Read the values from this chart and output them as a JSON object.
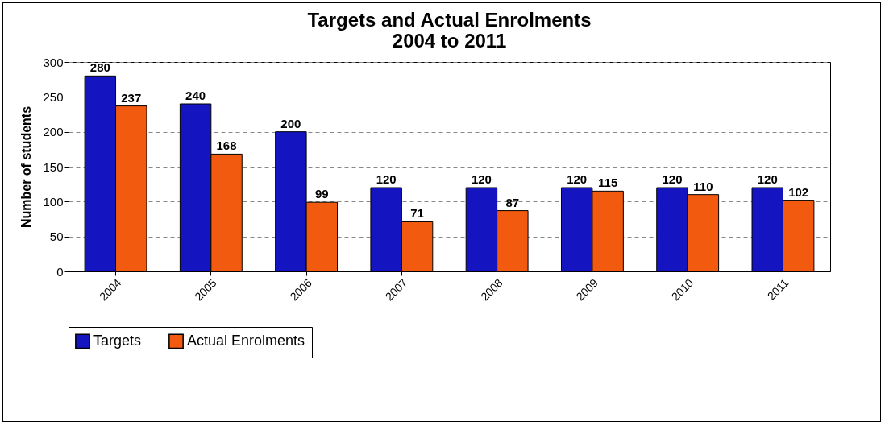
{
  "chart_data": {
    "type": "bar",
    "title": "Targets and Actual Enrolments\n2004 to 2011",
    "ylabel": "Number of students",
    "categories": [
      "2004",
      "2005",
      "2006",
      "2007",
      "2008",
      "2009",
      "2010",
      "2011"
    ],
    "series": [
      {
        "name": "Targets",
        "color": "#1414c0",
        "values": [
          280,
          240,
          200,
          120,
          120,
          120,
          120,
          120
        ]
      },
      {
        "name": "Actual Enrolments",
        "color": "#f25a10",
        "values": [
          237,
          168,
          99,
          71,
          87,
          115,
          110,
          102
        ]
      }
    ],
    "ylim": [
      0,
      300
    ],
    "yticks": [
      0,
      50,
      100,
      150,
      200,
      250,
      300
    ],
    "grid": "y",
    "legend": "bottom",
    "data_labels": true
  }
}
